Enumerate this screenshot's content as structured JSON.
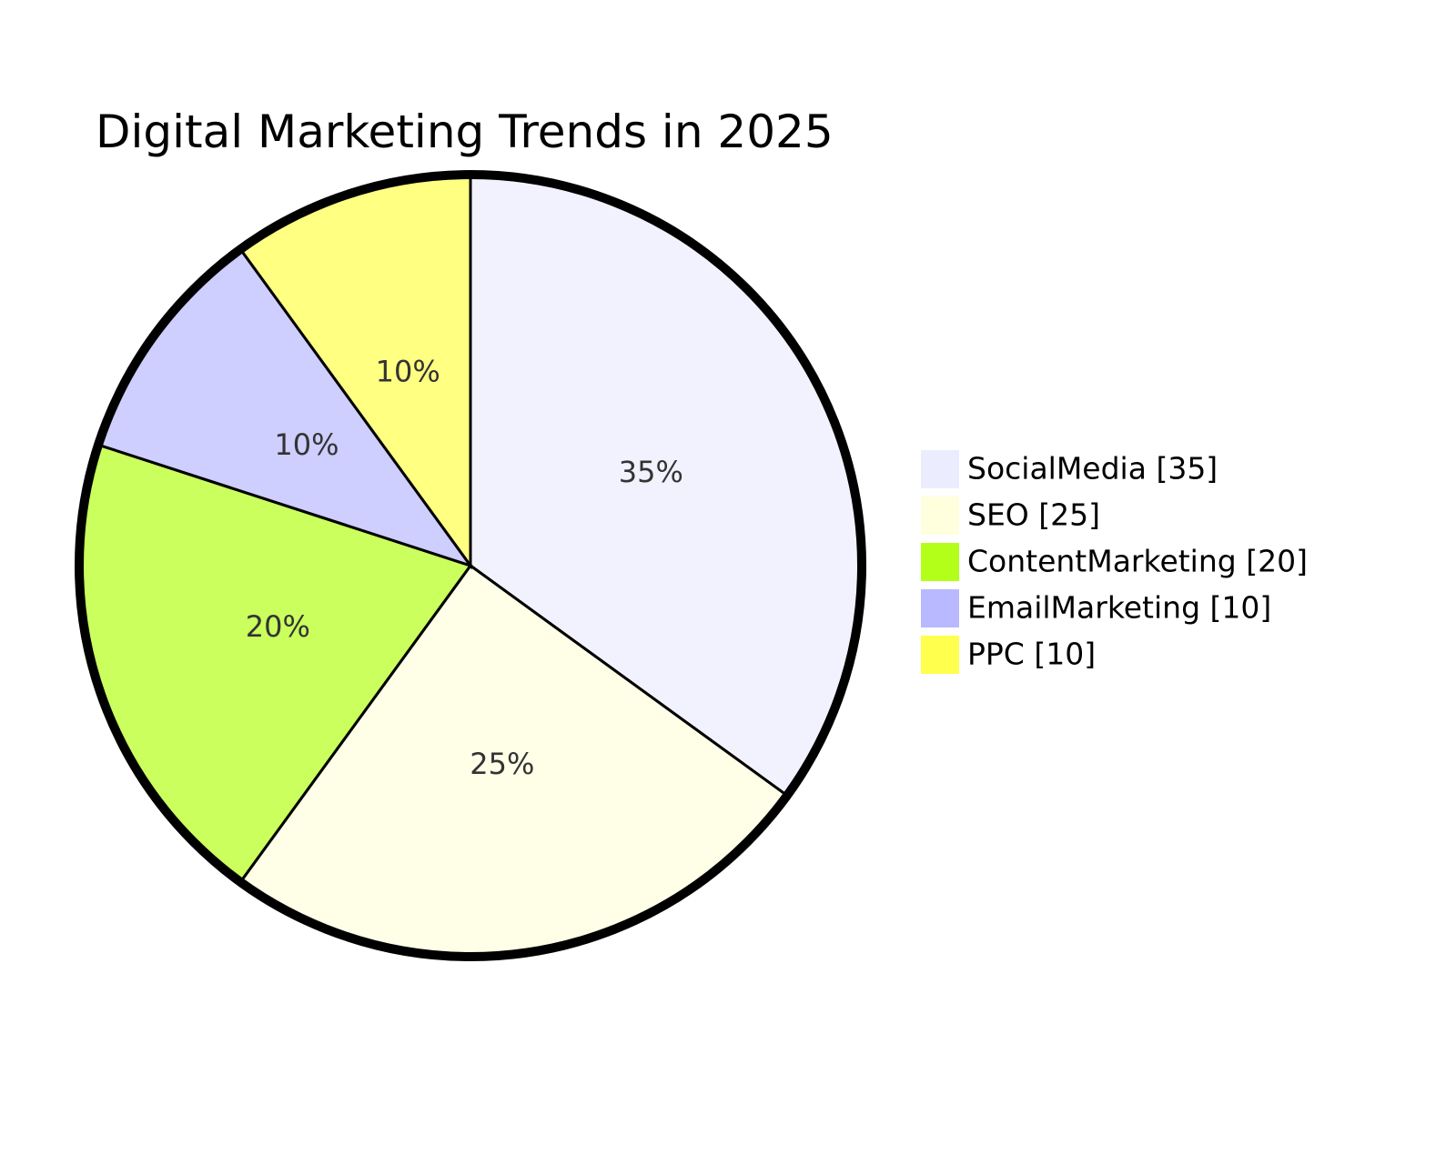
{
  "chart_data": {
    "type": "pie",
    "title": "Digital Marketing Trends in 2025",
    "categories": [
      "SocialMedia [35]",
      "SEO [25]",
      "ContentMarketing [20]",
      "EmailMarketing [10]",
      "PPC [10]"
    ],
    "values": [
      35,
      25,
      20,
      10,
      10
    ],
    "value_labels": [
      "35%",
      "25%",
      "20%",
      "10%",
      "10%"
    ],
    "colors": [
      "#ececff",
      "#ffffde",
      "#b3ff1a",
      "#b9b9ff",
      "#ffff4d"
    ],
    "legend": "right"
  }
}
